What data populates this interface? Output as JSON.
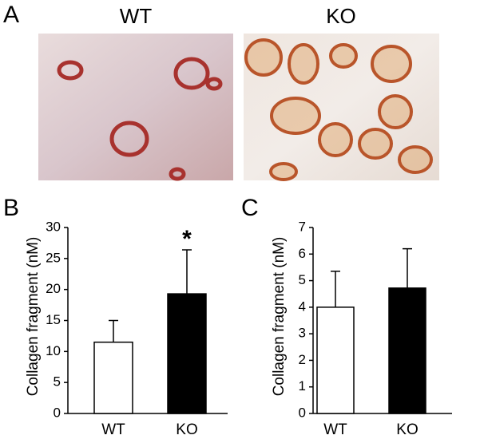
{
  "panel_a": {
    "label": "A",
    "images": [
      {
        "label": "WT"
      },
      {
        "label": "KO"
      }
    ]
  },
  "chart_data": [
    {
      "type": "bar",
      "panel_label": "B",
      "ylabel": "Collagen fragment (nM)",
      "categories": [
        "WT",
        "KO"
      ],
      "values": [
        11.5,
        19.3
      ],
      "errors": [
        3.5,
        7.1
      ],
      "colors": [
        "#ffffff",
        "#000000"
      ],
      "annotation": "*",
      "ylim": [
        0,
        30
      ],
      "yticks": [
        0,
        5,
        10,
        15,
        20,
        25,
        30
      ]
    },
    {
      "type": "bar",
      "panel_label": "C",
      "ylabel": "Collagen fragment (nM)",
      "categories": [
        "WT",
        "KO"
      ],
      "values": [
        4.0,
        4.72
      ],
      "errors": [
        1.35,
        1.48
      ],
      "colors": [
        "#ffffff",
        "#000000"
      ],
      "ylim": [
        0,
        7
      ],
      "yticks": [
        0,
        1,
        2,
        3,
        4,
        5,
        6,
        7
      ]
    }
  ]
}
